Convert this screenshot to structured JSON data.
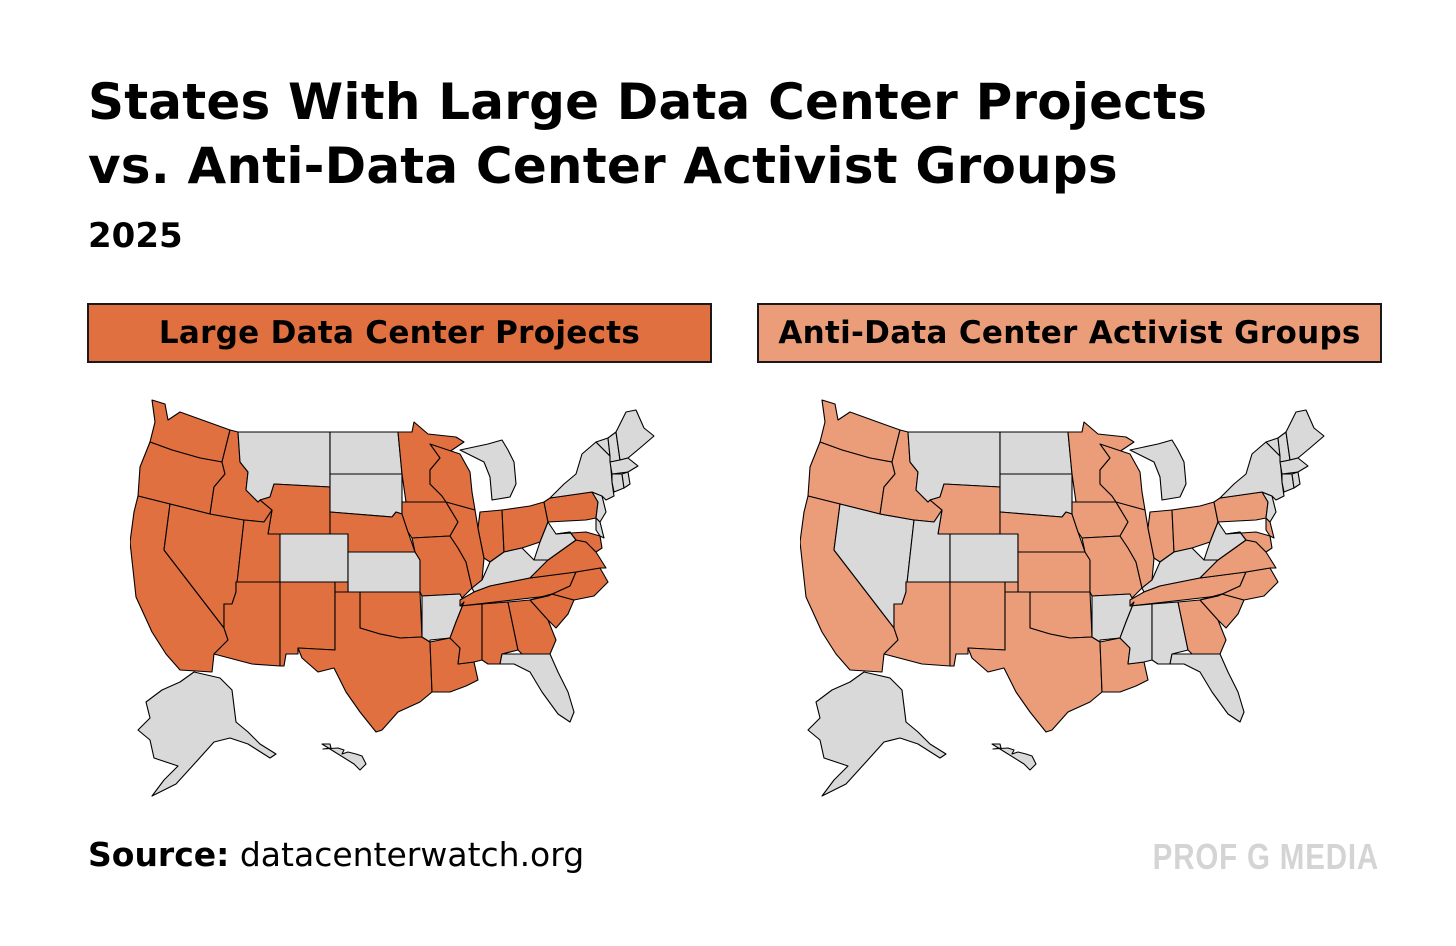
{
  "title_line1": "States With Large Data Center Projects",
  "title_line2": "vs. Anti-Data Center Activist Groups",
  "subtitle": "2025",
  "colors": {
    "projects": "#e07040",
    "activists": "#eb9d7a",
    "none": "#d9d9d9",
    "brand": "#d4d4d4"
  },
  "panels": [
    {
      "label": "Large Data Center Projects",
      "highlighted_states": [
        "WA",
        "OR",
        "CA",
        "ID",
        "NV",
        "UT",
        "AZ",
        "WY",
        "NM",
        "NE",
        "TX",
        "OK",
        "LA",
        "MN",
        "IA",
        "MO",
        "WI",
        "IL",
        "IN",
        "OH",
        "PA",
        "TN",
        "MS",
        "AL",
        "GA",
        "SC",
        "NC",
        "VA",
        "MD"
      ]
    },
    {
      "label": "Anti-Data Center Activist Groups",
      "highlighted_states": [
        "WA",
        "OR",
        "CA",
        "ID",
        "WY",
        "AZ",
        "NM",
        "NE",
        "KS",
        "TX",
        "OK",
        "LA",
        "MN",
        "IA",
        "MO",
        "WI",
        "IL",
        "IN",
        "OH",
        "PA",
        "TN",
        "GA",
        "SC",
        "NC",
        "VA",
        "MD",
        "DE"
      ]
    }
  ],
  "source_label": "Source:",
  "source_value": "datacenterwatch.org",
  "brand": "PROF G MEDIA"
}
